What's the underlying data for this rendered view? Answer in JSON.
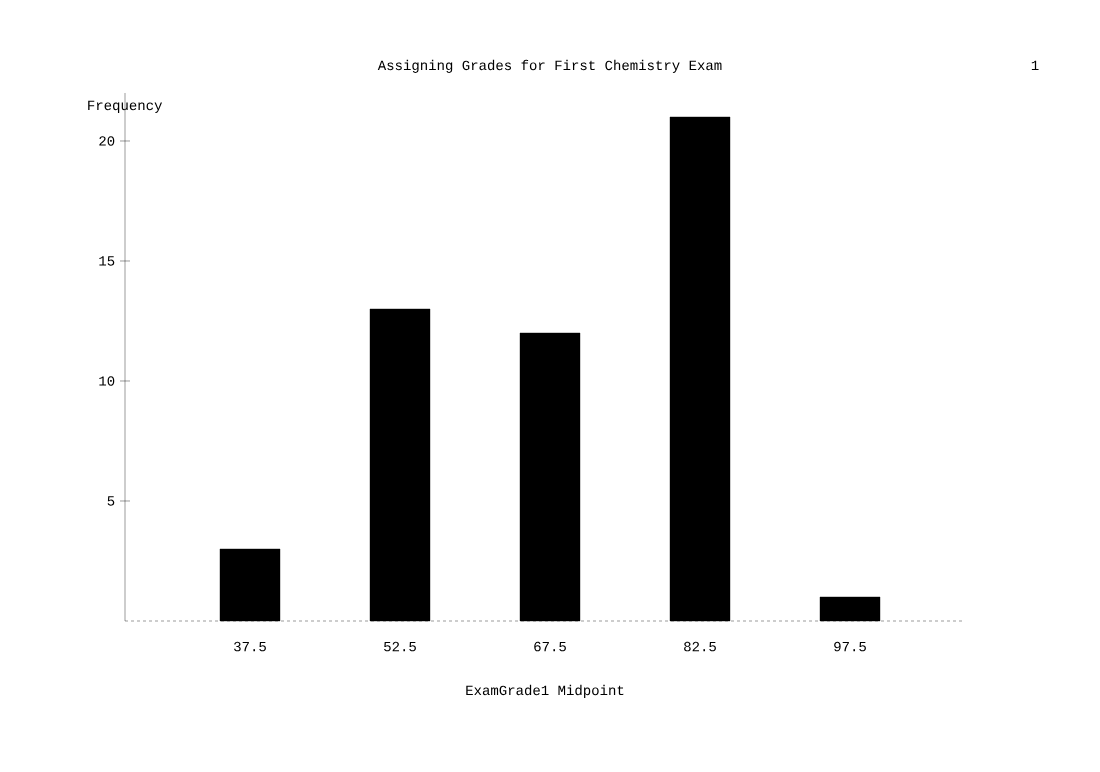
{
  "chart_data": {
    "type": "bar",
    "title": "Assigning Grades for First Chemistry Exam",
    "ylabel": "Frequency",
    "xlabel": "ExamGrade1 Midpoint",
    "categories": [
      "37.5",
      "52.5",
      "67.5",
      "82.5",
      "97.5"
    ],
    "values": [
      3,
      13,
      12,
      21,
      1
    ],
    "color": "#000000",
    "ylim": [
      0,
      22
    ],
    "yticks": [
      5,
      10,
      15,
      20
    ],
    "annotations": [
      "1"
    ]
  }
}
